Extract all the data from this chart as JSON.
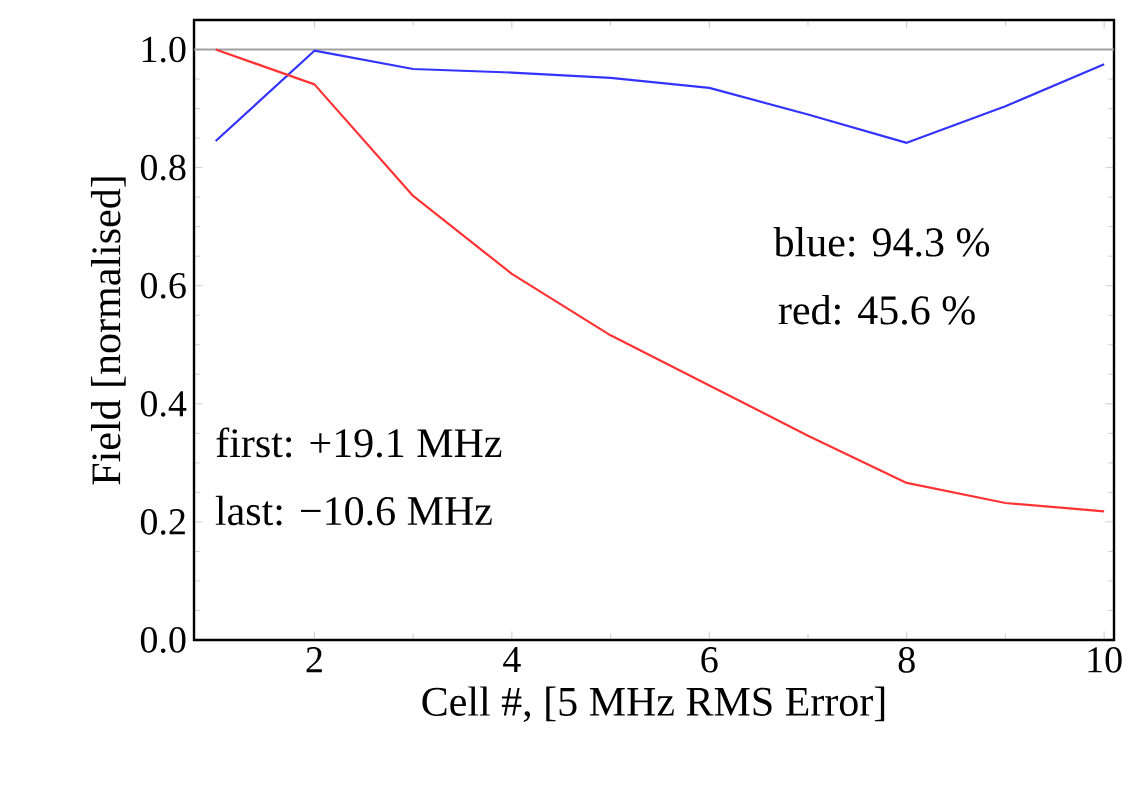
{
  "chart_data": {
    "type": "line",
    "xlabel": "Cell #, [5 MHz RMS Error]",
    "ylabel": "Field [normalised]",
    "x": [
      1,
      2,
      3,
      4,
      5,
      6,
      7,
      8,
      9,
      10
    ],
    "series": [
      {
        "color": "#3333ff",
        "values": [
          0.845,
          0.998,
          0.967,
          0.961,
          0.952,
          0.935,
          0.89,
          0.842,
          0.904,
          0.975
        ]
      },
      {
        "color": "#ff3333",
        "values": [
          1.0,
          0.941,
          0.752,
          0.62,
          0.516,
          0.431,
          0.346,
          0.266,
          0.232,
          0.218
        ]
      }
    ],
    "xlim": [
      0.78,
      10.1
    ],
    "ylim": [
      0,
      1.05
    ],
    "xticks": [
      2,
      4,
      6,
      8,
      10
    ],
    "yticks": [
      {
        "value": 0,
        "label": "0.0"
      },
      {
        "value": 0.2,
        "label": "0.2"
      },
      {
        "value": 0.4,
        "label": "0.4"
      },
      {
        "value": 0.6,
        "label": "0.6"
      },
      {
        "value": 0.8,
        "label": "0.8"
      },
      {
        "value": 1,
        "label": "1.0"
      }
    ],
    "ref_lines": [
      {
        "axis": "y",
        "value": 1,
        "color": "#a0a0a0"
      }
    ],
    "annotations": [
      {
        "text": "blue: 94.3 %"
      },
      {
        "text": "red: 45.6 %"
      },
      {
        "text": "first: +19.1 MHz"
      },
      {
        "text": "last: −10.6 MHz"
      }
    ],
    "line_style": "solid",
    "marker": "none"
  }
}
